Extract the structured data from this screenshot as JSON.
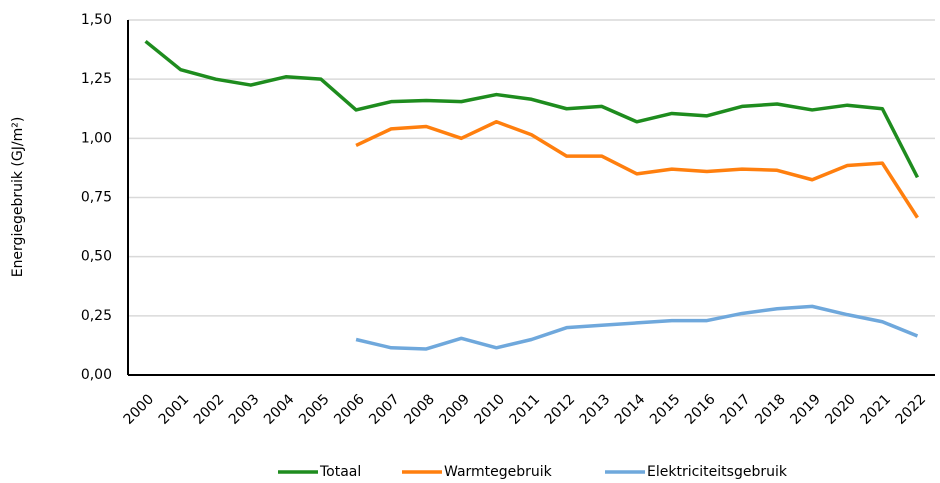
{
  "chart_data": {
    "type": "line",
    "y_label": "Energiegebruik (GJ/m²)",
    "categories": [
      "2000",
      "2001",
      "2002",
      "2003",
      "2004",
      "2005",
      "2006",
      "2007",
      "2008",
      "2009",
      "2010",
      "2011",
      "2012",
      "2013",
      "2014",
      "2015",
      "2016",
      "2017",
      "2018",
      "2019",
      "2020",
      "2021",
      "2022"
    ],
    "series": [
      {
        "name": "Totaal",
        "color": "#1e8c1e",
        "values": [
          1.41,
          1.29,
          1.25,
          1.225,
          1.26,
          1.25,
          1.12,
          1.155,
          1.16,
          1.155,
          1.185,
          1.165,
          1.125,
          1.135,
          1.07,
          1.105,
          1.095,
          1.135,
          1.145,
          1.12,
          1.14,
          1.125,
          0.835
        ]
      },
      {
        "name": "Warmtegebruik",
        "color": "#ff7f0e",
        "values": [
          null,
          null,
          null,
          null,
          null,
          null,
          0.97,
          1.04,
          1.05,
          1.0,
          1.07,
          1.015,
          0.925,
          0.925,
          0.85,
          0.87,
          0.86,
          0.87,
          0.865,
          0.825,
          0.885,
          0.895,
          0.665
        ]
      },
      {
        "name": "Elektriciteitsgebruik",
        "color": "#6fa8dc",
        "values": [
          null,
          null,
          null,
          null,
          null,
          null,
          0.15,
          0.115,
          0.11,
          0.155,
          0.115,
          0.15,
          0.2,
          0.21,
          0.22,
          0.23,
          0.23,
          0.26,
          0.28,
          0.29,
          0.255,
          0.225,
          0.165
        ]
      }
    ],
    "ylim": [
      0,
      1.5
    ],
    "yticks": [
      {
        "value": 0,
        "label": "0,00"
      },
      {
        "value": 0.25,
        "label": "0,25"
      },
      {
        "value": 0.5,
        "label": "0,50"
      },
      {
        "value": 0.75,
        "label": "0,75"
      },
      {
        "value": 1.0,
        "label": "1,00"
      },
      {
        "value": 1.25,
        "label": "1,25"
      },
      {
        "value": 1.5,
        "label": "1,50"
      }
    ],
    "grid": true,
    "legend": "bottom"
  }
}
